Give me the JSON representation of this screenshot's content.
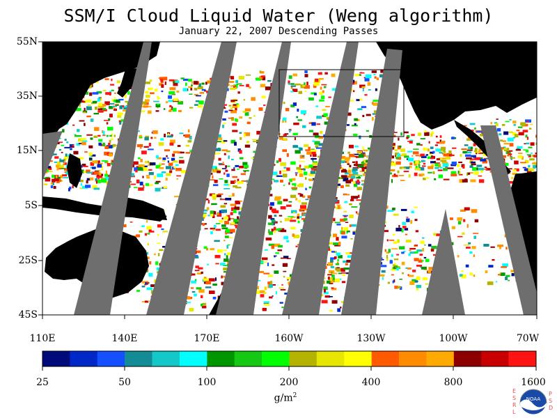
{
  "title": "SSM/I Cloud Liquid Water (Weng algorithm)",
  "subtitle": "January 22, 2007  Descending Passes",
  "lat_labels": [
    "55N",
    "35N",
    "15N",
    "5S",
    "25S",
    "45S"
  ],
  "lon_labels": [
    "110E",
    "140E",
    "170E",
    "160W",
    "130W",
    "100W",
    "70W"
  ],
  "colorbar": {
    "labels": [
      "25",
      "50",
      "100",
      "200",
      "400",
      "800",
      "1600"
    ],
    "units": "g/m",
    "units_sup": "2",
    "colors": [
      "#000a78",
      "#0028c8",
      "#1450ff",
      "#148c96",
      "#14c8c8",
      "#00ffff",
      "#009600",
      "#14c814",
      "#00ff00",
      "#b4b400",
      "#e6e600",
      "#ffff00",
      "#ff5a00",
      "#ff8c00",
      "#ffaa00",
      "#8c0000",
      "#c80000",
      "#ff1414"
    ]
  },
  "logo": {
    "text": "NOAA",
    "left_letters": [
      "E",
      "S",
      "R",
      "L"
    ],
    "right_letters": [
      "P",
      "S",
      "D"
    ]
  }
}
